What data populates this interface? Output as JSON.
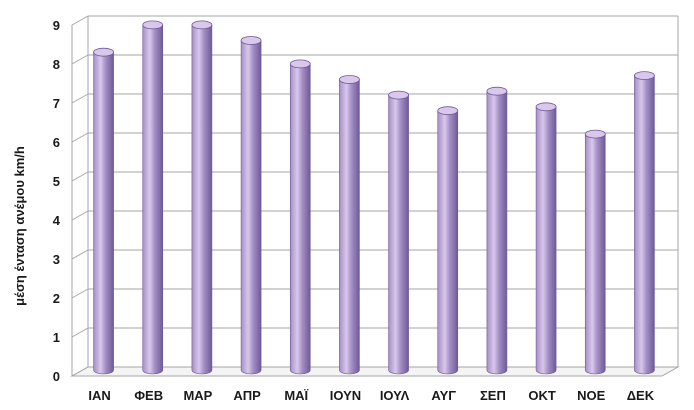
{
  "chart_data": {
    "type": "bar",
    "categories": [
      "ΙΑΝ",
      "ΦΕΒ",
      "ΜΑΡ",
      "ΑΠΡ",
      "ΜΑΪ",
      "ΙΟΥΝ",
      "ΙΟΥΛ",
      "ΑΥΓ",
      "ΣΕΠ",
      "ΟΚΤ",
      "ΝΟΕ",
      "ΔΕΚ"
    ],
    "values": [
      8.2,
      8.9,
      8.9,
      8.5,
      7.9,
      7.5,
      7.1,
      6.7,
      7.2,
      6.8,
      6.1,
      7.6
    ],
    "title": "",
    "xlabel": "",
    "ylabel": "μέση ένταση ανέμου km/h",
    "ylim": [
      0,
      9
    ],
    "yticks": [
      "0",
      "1",
      "2",
      "3",
      "4",
      "5",
      "6",
      "7",
      "8",
      "9"
    ],
    "grid": true,
    "legend": "none",
    "colors": {
      "bar_light": "#d9c8ec",
      "bar_mid": "#a48fc6",
      "bar_dark": "#6e5a96",
      "grid": "#a6a6a6"
    }
  }
}
